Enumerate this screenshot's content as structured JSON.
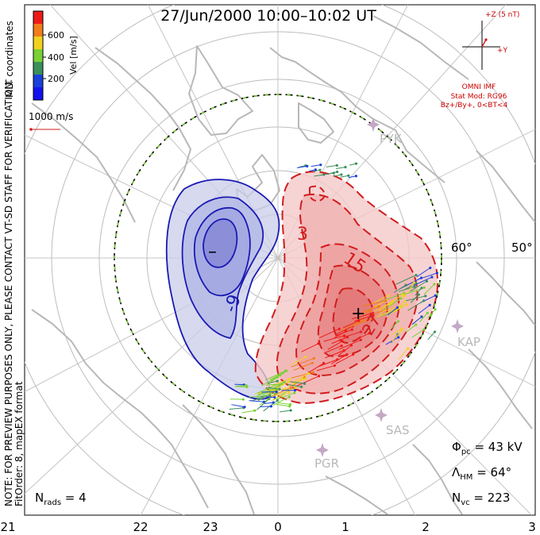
{
  "title": "27/Jun/2000 10:00–10:02 UT",
  "coord_label": "MLT coordinates",
  "colorbar": {
    "label": "Vel [m/s]",
    "ticks": [
      "600",
      "400",
      "200"
    ],
    "colors": [
      "#ee1a1a",
      "#f07d1a",
      "#f0d21e",
      "#7ad034",
      "#3a8f5a",
      "#1a3fdc",
      "#1212ee"
    ]
  },
  "scale_vector_label": "1000 m/s",
  "note": "NOTE: FOR PREVIEW PURPOSES ONLY, PLEASE CONTACT VT-SD STAFF FOR VERIFICATION.",
  "fit_order": "FitOrder: 8, mapEX format",
  "imf": {
    "bz_label": "+Z (5 nT)",
    "by_label": "+Y",
    "source": "OMNI IMF",
    "model": "Stat Mod: RG96",
    "condition": "Bz+/By+, 0<BT<4"
  },
  "stations": [
    {
      "name": "PYK"
    },
    {
      "name": "KAP"
    },
    {
      "name": "SAS"
    },
    {
      "name": "PGR"
    }
  ],
  "lat_labels": [
    "60°",
    "50°"
  ],
  "contour_labels": {
    "neg": [
      "-9"
    ],
    "pos": [
      "3",
      "15",
      "27"
    ]
  },
  "extrema": {
    "min": "–",
    "max": "+"
  },
  "stats": {
    "phi_sym": "Φ",
    "phi_sub": "pc",
    "phi_val": " = 43 kV",
    "lambda_sym": "Λ",
    "lambda_sub": "HM",
    "lambda_val": " = 64°",
    "nvc_sym": "N",
    "nvc_sub": "vc",
    "nvc_val": " = 223",
    "nrads_sym": "N",
    "nrads_sub": "rads",
    "nrads_val": " = 4"
  },
  "mlt_labels": [
    "21",
    "22",
    "23",
    "0",
    "1",
    "2",
    "3"
  ]
}
